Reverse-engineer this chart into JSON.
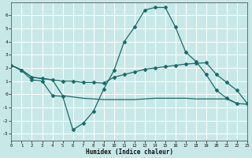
{
  "xlabel": "Humidex (Indice chaleur)",
  "background_color": "#c8e8e8",
  "grid_color": "#ffffff",
  "line_color": "#1a6b6b",
  "xlim": [
    0,
    23
  ],
  "ylim": [
    -3.5,
    7.0
  ],
  "yticks": [
    -3,
    -2,
    -1,
    0,
    1,
    2,
    3,
    4,
    5,
    6
  ],
  "xticks": [
    0,
    1,
    2,
    3,
    4,
    5,
    6,
    7,
    8,
    9,
    10,
    11,
    12,
    13,
    14,
    15,
    16,
    17,
    18,
    19,
    20,
    21,
    22,
    23
  ],
  "line1_x": [
    0,
    1,
    2,
    3,
    4,
    5,
    6,
    7,
    8,
    9,
    10,
    11,
    12,
    13,
    14,
    15,
    16,
    17,
    18,
    19,
    20,
    21,
    22,
    23
  ],
  "line1_y": [
    2.2,
    1.8,
    1.1,
    1.0,
    -0.1,
    -0.15,
    -2.7,
    -2.2,
    -1.3,
    0.4,
    1.8,
    4.0,
    5.1,
    6.4,
    6.6,
    6.6,
    5.1,
    3.2,
    2.5,
    1.5,
    0.3,
    -0.3,
    -0.7,
    null
  ],
  "line2_x": [
    0,
    1,
    2,
    3,
    4,
    5,
    6,
    7,
    8,
    9,
    10,
    11,
    12,
    13,
    14,
    15,
    16,
    17,
    18,
    19,
    20,
    21,
    22,
    23
  ],
  "line2_y": [
    2.2,
    1.85,
    1.3,
    1.2,
    1.1,
    1.0,
    1.0,
    0.9,
    0.9,
    0.85,
    1.3,
    1.5,
    1.7,
    1.9,
    2.0,
    2.1,
    2.2,
    2.3,
    2.35,
    2.4,
    1.5,
    0.9,
    0.3,
    -0.7
  ],
  "line3_x": [
    0,
    1,
    2,
    3,
    4,
    5,
    6,
    7,
    8,
    9,
    10,
    11,
    12,
    13,
    14,
    15,
    16,
    17,
    18,
    19,
    20,
    21,
    22,
    23
  ],
  "line3_y": [
    2.2,
    1.85,
    1.3,
    1.2,
    1.1,
    -0.1,
    -0.2,
    -0.3,
    -0.35,
    -0.4,
    -0.4,
    -0.4,
    -0.4,
    -0.35,
    -0.3,
    -0.3,
    -0.3,
    -0.3,
    -0.35,
    -0.35,
    -0.35,
    -0.35,
    -0.7,
    -0.75
  ]
}
